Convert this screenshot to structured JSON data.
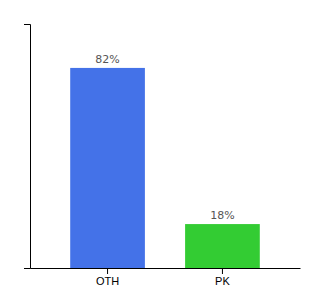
{
  "chart_data": {
    "type": "bar",
    "categories": [
      "OTH",
      "PK"
    ],
    "values": [
      82,
      18
    ],
    "colors": [
      "#4472e8",
      "#33cc33"
    ],
    "value_labels": [
      "82%",
      "18%"
    ],
    "data_labels": true,
    "ylim": [
      0,
      100
    ],
    "grid": false,
    "tick_labels": "x"
  }
}
